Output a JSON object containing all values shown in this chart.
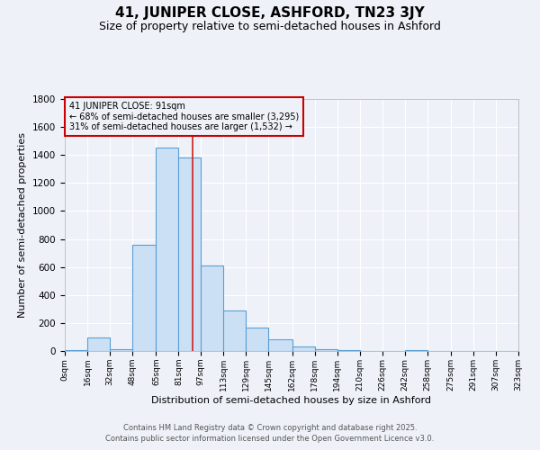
{
  "title": "41, JUNIPER CLOSE, ASHFORD, TN23 3JY",
  "subtitle": "Size of property relative to semi-detached houses in Ashford",
  "xlabel": "Distribution of semi-detached houses by size in Ashford",
  "ylabel": "Number of semi-detached properties",
  "footer_line1": "Contains HM Land Registry data © Crown copyright and database right 2025.",
  "footer_line2": "Contains public sector information licensed under the Open Government Licence v3.0.",
  "annotation_title": "41 JUNIPER CLOSE: 91sqm",
  "annotation_line1": "← 68% of semi-detached houses are smaller (3,295)",
  "annotation_line2": "31% of semi-detached houses are larger (1,532) →",
  "property_size": 91,
  "bar_left_edges": [
    0,
    16,
    32,
    48,
    65,
    81,
    97,
    113,
    129,
    145,
    162,
    178,
    194,
    210,
    226,
    242,
    258,
    275,
    291,
    307
  ],
  "bar_heights": [
    5,
    95,
    10,
    760,
    1450,
    1380,
    610,
    290,
    170,
    85,
    30,
    15,
    5,
    0,
    0,
    5,
    0,
    0,
    0,
    0
  ],
  "bin_width": 16,
  "bar_facecolor": "#cce0f5",
  "bar_edgecolor": "#5a9fd4",
  "vline_color": "#cc2222",
  "vline_x": 91,
  "ylim": [
    0,
    1800
  ],
  "yticks": [
    0,
    200,
    400,
    600,
    800,
    1000,
    1200,
    1400,
    1600,
    1800
  ],
  "xtick_labels": [
    "0sqm",
    "16sqm",
    "32sqm",
    "48sqm",
    "65sqm",
    "81sqm",
    "97sqm",
    "113sqm",
    "129sqm",
    "145sqm",
    "162sqm",
    "178sqm",
    "194sqm",
    "210sqm",
    "226sqm",
    "242sqm",
    "258sqm",
    "275sqm",
    "291sqm",
    "307sqm",
    "323sqm"
  ],
  "background_color": "#eef2f8",
  "plot_background": "#eef2f8",
  "grid_color": "#ffffff",
  "annotation_box_edgecolor": "#cc0000",
  "title_fontsize": 11,
  "subtitle_fontsize": 9,
  "xlabel_fontsize": 8,
  "ylabel_fontsize": 8,
  "footer_fontsize": 6,
  "annotation_fontsize": 7
}
